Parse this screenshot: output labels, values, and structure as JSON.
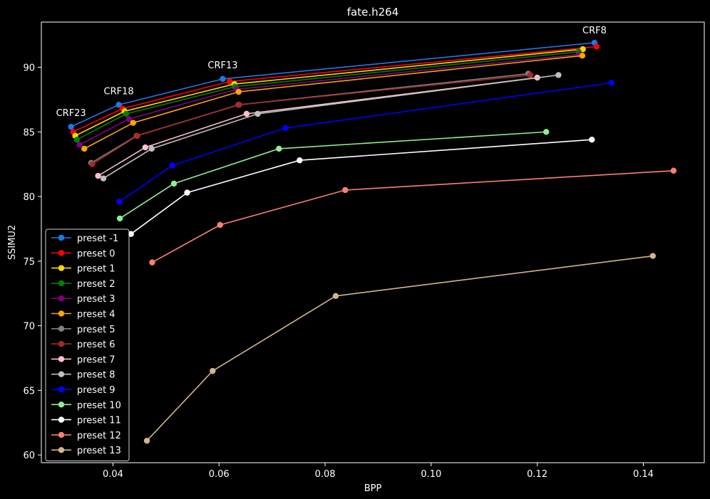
{
  "chart_data": {
    "type": "line",
    "title": "fate.h264",
    "xlabel": "BPP",
    "ylabel": "SSIMU2",
    "xlim": [
      0.0265,
      0.1515
    ],
    "ylim": [
      59.4,
      93.5
    ],
    "xticks": [
      0.04,
      0.06,
      0.08,
      0.1,
      0.12,
      0.14
    ],
    "xtick_labels": [
      "0.04",
      "0.06",
      "0.08",
      "0.10",
      "0.12",
      "0.14"
    ],
    "yticks": [
      60,
      65,
      70,
      75,
      80,
      85,
      90
    ],
    "ytick_labels": [
      "60",
      "65",
      "70",
      "75",
      "80",
      "85",
      "90"
    ],
    "grid": false,
    "legend_position": "lower-left",
    "background": "#000000",
    "axis_color": "#ffffff",
    "annotations": [
      {
        "text": "CRF8",
        "x": 0.1308,
        "y": 92.4
      },
      {
        "text": "CRF13",
        "x": 0.0607,
        "y": 89.7
      },
      {
        "text": "CRF18",
        "x": 0.0411,
        "y": 87.7
      },
      {
        "text": "CRF23",
        "x": 0.0321,
        "y": 86.0
      }
    ],
    "series": [
      {
        "name": "preset -1",
        "color": "#1f77e8",
        "x": [
          0.0321,
          0.0411,
          0.0607,
          0.1308
        ],
        "y": [
          85.4,
          87.1,
          89.1,
          91.9
        ]
      },
      {
        "name": "preset 0",
        "color": "#ff0000",
        "x": [
          0.0325,
          0.0418,
          0.062,
          0.1312
        ],
        "y": [
          85.0,
          86.8,
          88.9,
          91.6
        ]
      },
      {
        "name": "preset 1",
        "color": "#ffd700",
        "x": [
          0.0329,
          0.0422,
          0.0629,
          0.1286
        ],
        "y": [
          84.7,
          86.6,
          88.7,
          91.4
        ]
      },
      {
        "name": "preset 2",
        "color": "#008000",
        "x": [
          0.0332,
          0.0425,
          0.063,
          0.1278
        ],
        "y": [
          84.4,
          86.4,
          88.5,
          91.2
        ]
      },
      {
        "name": "preset 3",
        "color": "#800080",
        "x": [
          0.0337,
          0.043,
          0.0633,
          0.128
        ],
        "y": [
          84.0,
          86.0,
          88.3,
          91.0
        ]
      },
      {
        "name": "preset 4",
        "color": "#ffa500",
        "x": [
          0.0346,
          0.0438,
          0.0637,
          0.1285
        ],
        "y": [
          83.7,
          85.7,
          88.1,
          90.9
        ]
      },
      {
        "name": "preset 5",
        "color": "#808080",
        "x": [
          0.0359,
          0.0445,
          0.0637,
          0.1183
        ],
        "y": [
          82.6,
          84.7,
          87.1,
          89.5
        ]
      },
      {
        "name": "preset 6",
        "color": "#a52a2a",
        "x": [
          0.0361,
          0.0446,
          0.0638,
          0.1187
        ],
        "y": [
          82.5,
          84.7,
          87.1,
          89.4
        ]
      },
      {
        "name": "preset 7",
        "color": "#ffc0cb",
        "x": [
          0.0372,
          0.0461,
          0.0652,
          0.12
        ],
        "y": [
          81.6,
          83.8,
          86.4,
          89.2
        ]
      },
      {
        "name": "preset 8",
        "color": "#c0c0c0",
        "x": [
          0.0382,
          0.0473,
          0.0673,
          0.124
        ],
        "y": [
          81.4,
          83.7,
          86.4,
          89.4
        ]
      },
      {
        "name": "preset 9",
        "color": "#0000ff",
        "x": [
          0.0412,
          0.0512,
          0.0725,
          0.134
        ],
        "y": [
          79.6,
          82.4,
          85.3,
          88.8
        ]
      },
      {
        "name": "preset 10",
        "color": "#90ee90",
        "x": [
          0.0413,
          0.0515,
          0.0713,
          0.1217
        ],
        "y": [
          78.3,
          81.0,
          83.7,
          85.0
        ]
      },
      {
        "name": "preset 11",
        "color": "#ffffff",
        "x": [
          0.0434,
          0.054,
          0.0752,
          0.1303
        ],
        "y": [
          77.1,
          80.3,
          82.8,
          84.4
        ]
      },
      {
        "name": "preset 12",
        "color": "#fa8072",
        "x": [
          0.0474,
          0.0602,
          0.0838,
          0.1457
        ],
        "y": [
          74.9,
          77.8,
          80.5,
          82.0
        ]
      },
      {
        "name": "preset 13",
        "color": "#d2b48c",
        "x": [
          0.0464,
          0.0588,
          0.082,
          0.1418
        ],
        "y": [
          61.1,
          66.5,
          72.3,
          75.4
        ]
      }
    ]
  }
}
